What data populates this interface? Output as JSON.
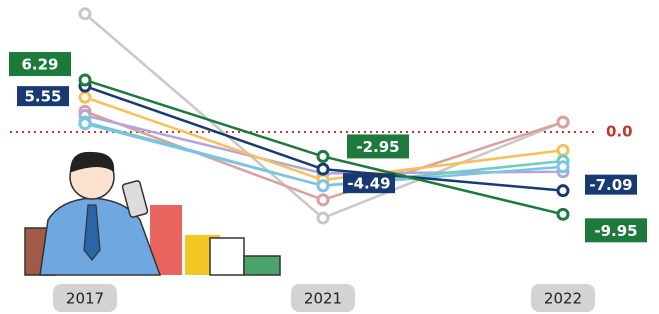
{
  "chart_data": {
    "type": "line",
    "categories": [
      "2017",
      "2021",
      "2022"
    ],
    "ylim": [
      -11,
      15
    ],
    "reference_line": {
      "value": 0,
      "label": "0.0",
      "color": "#c0392b"
    },
    "series": [
      {
        "color": "#c8c8c8",
        "values": [
          14.3,
          -10.4,
          1.2
        ]
      },
      {
        "color": "#d9a09e",
        "values": [
          2.5,
          -8.2,
          1.2
        ]
      },
      {
        "color": "#b3a6d9",
        "values": [
          2.0,
          -5.0,
          -4.8
        ]
      },
      {
        "color": "#f5c15a",
        "values": [
          4.2,
          -5.8,
          -2.2
        ]
      },
      {
        "color": "#6ccdc0",
        "values": [
          1.2,
          -6.5,
          -3.5
        ]
      },
      {
        "color": "#7cc3ea",
        "values": [
          1.0,
          -6.5,
          -4.2
        ]
      },
      {
        "color": "#173a73",
        "values": [
          5.55,
          -4.49,
          -7.09
        ]
      },
      {
        "color": "#1e7a3c",
        "values": [
          6.29,
          -2.95,
          -9.95
        ]
      }
    ],
    "labeled_series": [
      6,
      7
    ]
  }
}
